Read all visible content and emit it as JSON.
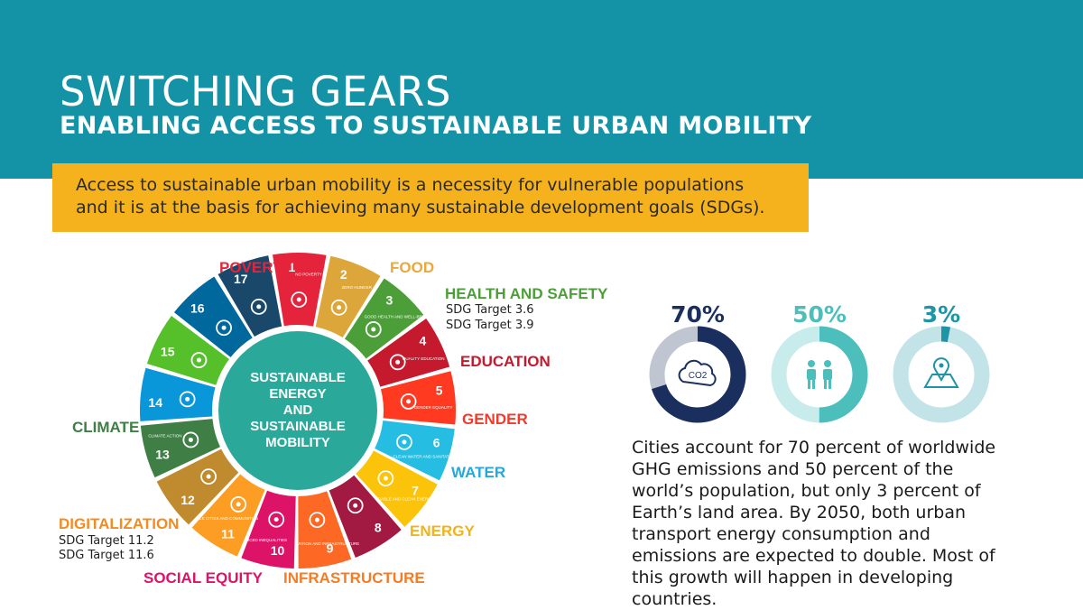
{
  "header": {
    "title": "SWITCHING GEARS",
    "subtitle": "ENABLING ACCESS TO SUSTAINABLE URBAN MOBILITY"
  },
  "callout": {
    "text_line1": "Access to sustainable urban mobility is a necessity for vulnerable populations",
    "text_line2": "and it is at the basis for achieving many sustainable development goals (SDGs)."
  },
  "wheel": {
    "center_lines": [
      "SUSTAINABLE",
      "ENERGY",
      "AND",
      "SUSTAINABLE",
      "MOBILITY"
    ],
    "center_color": "#2aa99a",
    "segments": [
      {
        "num": "1",
        "name": "NO POVERTY",
        "color": "#e5243b",
        "icon": "family-icon"
      },
      {
        "num": "2",
        "name": "ZERO HUNGER",
        "color": "#dda63a",
        "icon": "bowl-icon"
      },
      {
        "num": "3",
        "name": "GOOD HEALTH AND WELL-BEING",
        "color": "#4c9f38",
        "icon": "heartbeat-icon"
      },
      {
        "num": "4",
        "name": "QUALITY EDUCATION",
        "color": "#c5192d",
        "icon": "book-icon"
      },
      {
        "num": "5",
        "name": "GENDER EQUALITY",
        "color": "#ff3a21",
        "icon": "gender-icon"
      },
      {
        "num": "6",
        "name": "CLEAN WATER AND SANITATION",
        "color": "#26bde2",
        "icon": "water-drop-icon"
      },
      {
        "num": "7",
        "name": "AFFORDABLE AND CLEAN ENERGY",
        "color": "#fcc30b",
        "icon": "sun-icon"
      },
      {
        "num": "8",
        "name": "",
        "color": "#a21942",
        "icon": "growth-chart-icon"
      },
      {
        "num": "9",
        "name": "INDUSTRY, INNOVATION AND INFRASTRUCTURE",
        "color": "#fd6925",
        "icon": "cubes-icon"
      },
      {
        "num": "10",
        "name": "REDUCED INEQUALITIES",
        "color": "#dd1367",
        "icon": "equality-icon"
      },
      {
        "num": "11",
        "name": "SUSTAINABLE CITIES AND COMMUNITIES",
        "color": "#fd9d24",
        "icon": "city-icon"
      },
      {
        "num": "12",
        "name": "",
        "color": "#bf8b2e",
        "icon": "infinity-icon"
      },
      {
        "num": "13",
        "name": "CLIMATE ACTION",
        "color": "#3f7e44",
        "icon": "eye-globe-icon"
      },
      {
        "num": "14",
        "name": "",
        "color": "#0a97d9",
        "icon": "fish-icon"
      },
      {
        "num": "15",
        "name": "",
        "color": "#56c02b",
        "icon": "tree-icon"
      },
      {
        "num": "16",
        "name": "",
        "color": "#00689d",
        "icon": "dove-icon"
      },
      {
        "num": "17",
        "name": "",
        "color": "#19486a",
        "icon": "flower-icon"
      }
    ]
  },
  "labels": {
    "poverty": "POVERTY",
    "food": "FOOD",
    "health": "HEALTH AND SAFETY",
    "health_targets": [
      "SDG Target 3.6",
      "SDG Target 3.9"
    ],
    "education": "EDUCATION",
    "gender": "GENDER",
    "water": "WATER",
    "energy": "ENERGY",
    "infrastructure": "INFRASTRUCTURE",
    "social_equity": "SOCIAL EQUITY",
    "digitalization": "DIGITALIZATION",
    "digital_targets": [
      "SDG Target 11.2",
      "SDG Target 11.6"
    ],
    "climate": "CLIMATE"
  },
  "label_colors": {
    "poverty": "#e5243b",
    "food": "#e8a93a",
    "health": "#4c9f38",
    "education": "#c5192d",
    "gender": "#ef3b2c",
    "water": "#26a9d8",
    "energy": "#f0b31d",
    "infrastructure": "#f47c25",
    "social_equity": "#dd1367",
    "digitalization": "#f28c22",
    "climate": "#3f7e44"
  },
  "stats": [
    {
      "pct": "70%",
      "value": 0.7,
      "color": "#1b2f5e",
      "track": "#c0c6d1",
      "icon": "co2-cloud-icon",
      "icon_text": "CO2"
    },
    {
      "pct": "50%",
      "value": 0.5,
      "color": "#4cbfbd",
      "track": "#c7eceb",
      "icon": "people-icon"
    },
    {
      "pct": "3%",
      "value": 0.03,
      "color": "#1e94a5",
      "track": "#c2e4e9",
      "icon": "map-pin-icon"
    }
  ],
  "body_text": "Cities account for 70 percent of worldwide GHG emissions and 50 percent of the world’s population, but only 3 percent of Earth’s land area. By 2050, both urban transport energy consumption and emissions are expected to double. Most of this growth will happen in developing countries."
}
